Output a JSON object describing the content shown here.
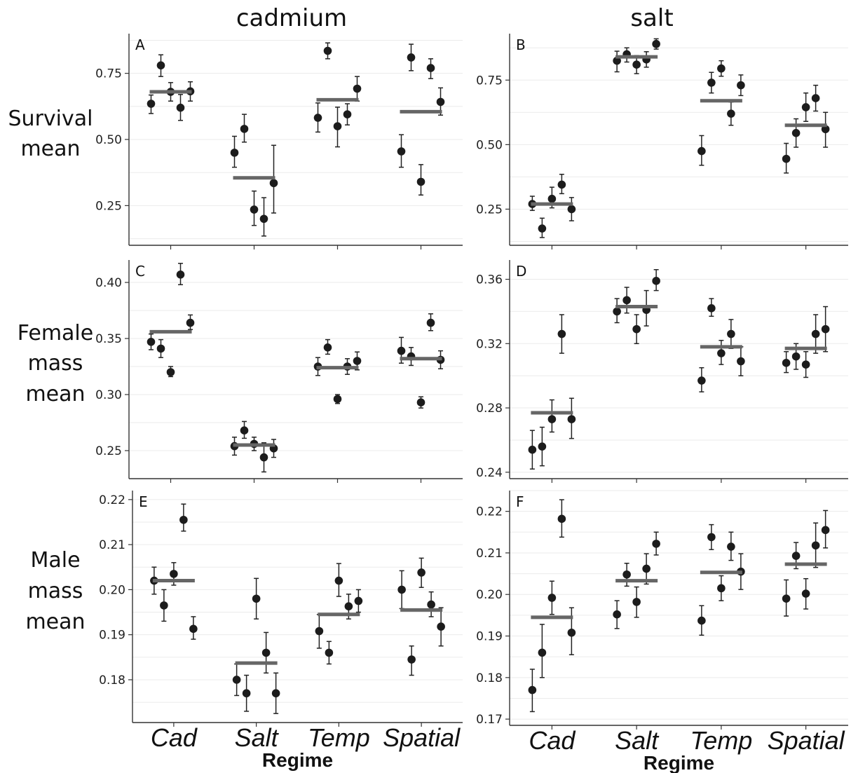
{
  "column_titles": [
    "cadmium",
    "salt"
  ],
  "row_labels": [
    [
      "Survival",
      "mean"
    ],
    [
      "Female",
      "mass",
      "mean"
    ],
    [
      "Male",
      "mass",
      "mean"
    ]
  ],
  "chart_data": [
    {
      "type": "scatter",
      "panel": "A",
      "column": "cadmium",
      "row": "Survival mean",
      "categories": [
        "Cad",
        "Salt",
        "Temp",
        "Spatial"
      ],
      "xlabel": "Regime",
      "ylim": [
        0.1,
        0.9
      ],
      "yticks": [
        0.25,
        0.5,
        0.75
      ],
      "yticklabels": [
        "0.25",
        "0.50",
        "0.75"
      ],
      "means": [
        0.68,
        0.355,
        0.65,
        0.605
      ],
      "points": [
        [
          {
            "y": 0.635,
            "lo": 0.598,
            "hi": 0.668
          },
          {
            "y": 0.78,
            "lo": 0.738,
            "hi": 0.82
          },
          {
            "y": 0.68,
            "lo": 0.645,
            "hi": 0.715
          },
          {
            "y": 0.62,
            "lo": 0.572,
            "hi": 0.67
          },
          {
            "y": 0.682,
            "lo": 0.645,
            "hi": 0.718
          }
        ],
        [
          {
            "y": 0.45,
            "lo": 0.395,
            "hi": 0.512
          },
          {
            "y": 0.54,
            "lo": 0.49,
            "hi": 0.595
          },
          {
            "y": 0.235,
            "lo": 0.175,
            "hi": 0.305
          },
          {
            "y": 0.2,
            "lo": 0.135,
            "hi": 0.28
          },
          {
            "y": 0.335,
            "lo": 0.222,
            "hi": 0.478
          }
        ],
        [
          {
            "y": 0.582,
            "lo": 0.528,
            "hi": 0.638
          },
          {
            "y": 0.835,
            "lo": 0.805,
            "hi": 0.865
          },
          {
            "y": 0.55,
            "lo": 0.472,
            "hi": 0.622
          },
          {
            "y": 0.595,
            "lo": 0.555,
            "hi": 0.635
          },
          {
            "y": 0.692,
            "lo": 0.645,
            "hi": 0.738
          }
        ],
        [
          {
            "y": 0.455,
            "lo": 0.395,
            "hi": 0.518
          },
          {
            "y": 0.81,
            "lo": 0.76,
            "hi": 0.86
          },
          {
            "y": 0.34,
            "lo": 0.29,
            "hi": 0.405
          },
          {
            "y": 0.77,
            "lo": 0.73,
            "hi": 0.805
          },
          {
            "y": 0.642,
            "lo": 0.592,
            "hi": 0.695
          }
        ]
      ]
    },
    {
      "type": "scatter",
      "panel": "B",
      "column": "salt",
      "row": "Survival mean",
      "categories": [
        "Cad",
        "Salt",
        "Temp",
        "Spatial"
      ],
      "xlabel": "Regime",
      "ylim": [
        0.11,
        0.93
      ],
      "yticks": [
        0.25,
        0.5,
        0.75
      ],
      "yticklabels": [
        "0.25",
        "0.50",
        "0.75"
      ],
      "means": [
        0.27,
        0.84,
        0.67,
        0.575
      ],
      "points": [
        [
          {
            "y": 0.27,
            "lo": 0.245,
            "hi": 0.3
          },
          {
            "y": 0.175,
            "lo": 0.14,
            "hi": 0.215
          },
          {
            "y": 0.29,
            "lo": 0.255,
            "hi": 0.335
          },
          {
            "y": 0.345,
            "lo": 0.31,
            "hi": 0.385
          },
          {
            "y": 0.25,
            "lo": 0.205,
            "hi": 0.295
          }
        ],
        [
          {
            "y": 0.825,
            "lo": 0.782,
            "hi": 0.862
          },
          {
            "y": 0.85,
            "lo": 0.82,
            "hi": 0.875
          },
          {
            "y": 0.81,
            "lo": 0.775,
            "hi": 0.845
          },
          {
            "y": 0.83,
            "lo": 0.8,
            "hi": 0.86
          },
          {
            "y": 0.89,
            "lo": 0.87,
            "hi": 0.91
          }
        ],
        [
          {
            "y": 0.475,
            "lo": 0.42,
            "hi": 0.535
          },
          {
            "y": 0.74,
            "lo": 0.7,
            "hi": 0.78
          },
          {
            "y": 0.795,
            "lo": 0.765,
            "hi": 0.825
          },
          {
            "y": 0.62,
            "lo": 0.575,
            "hi": 0.665
          },
          {
            "y": 0.73,
            "lo": 0.69,
            "hi": 0.77
          }
        ],
        [
          {
            "y": 0.445,
            "lo": 0.39,
            "hi": 0.505
          },
          {
            "y": 0.545,
            "lo": 0.49,
            "hi": 0.6
          },
          {
            "y": 0.645,
            "lo": 0.59,
            "hi": 0.7
          },
          {
            "y": 0.68,
            "lo": 0.63,
            "hi": 0.73
          },
          {
            "y": 0.56,
            "lo": 0.49,
            "hi": 0.625
          }
        ]
      ]
    },
    {
      "type": "scatter",
      "panel": "C",
      "column": "cadmium",
      "row": "Female mass mean",
      "categories": [
        "Cad",
        "Salt",
        "Temp",
        "Spatial"
      ],
      "xlabel": "Regime",
      "ylim": [
        0.225,
        0.42
      ],
      "yticks": [
        0.25,
        0.3,
        0.35,
        0.4
      ],
      "yticklabels": [
        "0.25",
        "0.30",
        "0.35",
        "0.40"
      ],
      "means": [
        0.356,
        0.255,
        0.324,
        0.332
      ],
      "points": [
        [
          {
            "y": 0.347,
            "lo": 0.34,
            "hi": 0.354
          },
          {
            "y": 0.341,
            "lo": 0.333,
            "hi": 0.349
          },
          {
            "y": 0.32,
            "lo": 0.316,
            "hi": 0.325
          },
          {
            "y": 0.407,
            "lo": 0.398,
            "hi": 0.417
          },
          {
            "y": 0.364,
            "lo": 0.358,
            "hi": 0.371
          }
        ],
        [
          {
            "y": 0.254,
            "lo": 0.246,
            "hi": 0.262
          },
          {
            "y": 0.268,
            "lo": 0.261,
            "hi": 0.276
          },
          {
            "y": 0.256,
            "lo": 0.25,
            "hi": 0.262
          },
          {
            "y": 0.244,
            "lo": 0.231,
            "hi": 0.257
          },
          {
            "y": 0.252,
            "lo": 0.244,
            "hi": 0.26
          }
        ],
        [
          {
            "y": 0.325,
            "lo": 0.317,
            "hi": 0.333
          },
          {
            "y": 0.342,
            "lo": 0.336,
            "hi": 0.349
          },
          {
            "y": 0.296,
            "lo": 0.292,
            "hi": 0.3
          },
          {
            "y": 0.325,
            "lo": 0.318,
            "hi": 0.332
          },
          {
            "y": 0.33,
            "lo": 0.322,
            "hi": 0.338
          }
        ],
        [
          {
            "y": 0.339,
            "lo": 0.328,
            "hi": 0.351
          },
          {
            "y": 0.334,
            "lo": 0.326,
            "hi": 0.342
          },
          {
            "y": 0.293,
            "lo": 0.288,
            "hi": 0.298
          },
          {
            "y": 0.364,
            "lo": 0.357,
            "hi": 0.372
          },
          {
            "y": 0.331,
            "lo": 0.323,
            "hi": 0.339
          }
        ]
      ]
    },
    {
      "type": "scatter",
      "panel": "D",
      "column": "salt",
      "row": "Female mass mean",
      "categories": [
        "Cad",
        "Salt",
        "Temp",
        "Spatial"
      ],
      "xlabel": "Regime",
      "ylim": [
        0.236,
        0.372
      ],
      "yticks": [
        0.24,
        0.28,
        0.32,
        0.36
      ],
      "yticklabels": [
        "0.24",
        "0.28",
        "0.32",
        "0.36"
      ],
      "means": [
        0.277,
        0.343,
        0.318,
        0.317
      ],
      "points": [
        [
          {
            "y": 0.254,
            "lo": 0.242,
            "hi": 0.266
          },
          {
            "y": 0.256,
            "lo": 0.244,
            "hi": 0.268
          },
          {
            "y": 0.273,
            "lo": 0.265,
            "hi": 0.285
          },
          {
            "y": 0.326,
            "lo": 0.314,
            "hi": 0.338
          },
          {
            "y": 0.273,
            "lo": 0.261,
            "hi": 0.286
          }
        ],
        [
          {
            "y": 0.34,
            "lo": 0.333,
            "hi": 0.348
          },
          {
            "y": 0.347,
            "lo": 0.339,
            "hi": 0.355
          },
          {
            "y": 0.329,
            "lo": 0.32,
            "hi": 0.338
          },
          {
            "y": 0.341,
            "lo": 0.331,
            "hi": 0.353
          },
          {
            "y": 0.359,
            "lo": 0.353,
            "hi": 0.366
          }
        ],
        [
          {
            "y": 0.297,
            "lo": 0.29,
            "hi": 0.305
          },
          {
            "y": 0.342,
            "lo": 0.337,
            "hi": 0.348
          },
          {
            "y": 0.314,
            "lo": 0.307,
            "hi": 0.322
          },
          {
            "y": 0.326,
            "lo": 0.317,
            "hi": 0.335
          },
          {
            "y": 0.309,
            "lo": 0.3,
            "hi": 0.318
          }
        ],
        [
          {
            "y": 0.308,
            "lo": 0.302,
            "hi": 0.315
          },
          {
            "y": 0.312,
            "lo": 0.304,
            "hi": 0.32
          },
          {
            "y": 0.307,
            "lo": 0.299,
            "hi": 0.315
          },
          {
            "y": 0.326,
            "lo": 0.314,
            "hi": 0.338
          },
          {
            "y": 0.329,
            "lo": 0.315,
            "hi": 0.343
          }
        ]
      ]
    },
    {
      "type": "scatter",
      "panel": "E",
      "column": "cadmium",
      "row": "Male mass mean",
      "categories": [
        "Cad",
        "Salt",
        "Temp",
        "Spatial"
      ],
      "xlabel": "Regime",
      "ylim": [
        0.1705,
        0.222
      ],
      "yticks": [
        0.18,
        0.19,
        0.2,
        0.21,
        0.22
      ],
      "yticklabels": [
        "0.18",
        "0.19",
        "0.20",
        "0.21",
        "0.22"
      ],
      "means": [
        0.202,
        0.1837,
        0.1945,
        0.1955
      ],
      "points": [
        [
          {
            "y": 0.202,
            "lo": 0.199,
            "hi": 0.205
          },
          {
            "y": 0.1965,
            "lo": 0.193,
            "hi": 0.2
          },
          {
            "y": 0.2035,
            "lo": 0.201,
            "hi": 0.206
          },
          {
            "y": 0.2155,
            "lo": 0.213,
            "hi": 0.219
          },
          {
            "y": 0.1913,
            "lo": 0.189,
            "hi": 0.194
          }
        ],
        [
          {
            "y": 0.18,
            "lo": 0.1765,
            "hi": 0.1835
          },
          {
            "y": 0.177,
            "lo": 0.173,
            "hi": 0.181
          },
          {
            "y": 0.198,
            "lo": 0.1935,
            "hi": 0.2025
          },
          {
            "y": 0.186,
            "lo": 0.1815,
            "hi": 0.1905
          },
          {
            "y": 0.177,
            "lo": 0.1725,
            "hi": 0.1815
          }
        ],
        [
          {
            "y": 0.1908,
            "lo": 0.187,
            "hi": 0.1945
          },
          {
            "y": 0.186,
            "lo": 0.1835,
            "hi": 0.1885
          },
          {
            "y": 0.202,
            "lo": 0.1985,
            "hi": 0.2058
          },
          {
            "y": 0.1963,
            "lo": 0.1935,
            "hi": 0.199
          },
          {
            "y": 0.1975,
            "lo": 0.195,
            "hi": 0.2
          }
        ],
        [
          {
            "y": 0.2,
            "lo": 0.1958,
            "hi": 0.2042
          },
          {
            "y": 0.1845,
            "lo": 0.181,
            "hi": 0.1875
          },
          {
            "y": 0.2038,
            "lo": 0.2005,
            "hi": 0.207
          },
          {
            "y": 0.1967,
            "lo": 0.194,
            "hi": 0.1995
          },
          {
            "y": 0.1918,
            "lo": 0.1875,
            "hi": 0.196
          }
        ]
      ]
    },
    {
      "type": "scatter",
      "panel": "F",
      "column": "salt",
      "row": "Male mass mean",
      "categories": [
        "Cad",
        "Salt",
        "Temp",
        "Spatial"
      ],
      "xlabel": "Regime",
      "ylim": [
        0.1685,
        0.225
      ],
      "yticks": [
        0.17,
        0.18,
        0.19,
        0.2,
        0.21,
        0.22
      ],
      "yticklabels": [
        "0.17",
        "0.18",
        "0.19",
        "0.20",
        "0.21",
        "0.22"
      ],
      "means": [
        0.1945,
        0.2033,
        0.2053,
        0.2073
      ],
      "points": [
        [
          {
            "y": 0.177,
            "lo": 0.1718,
            "hi": 0.182
          },
          {
            "y": 0.186,
            "lo": 0.18,
            "hi": 0.1928
          },
          {
            "y": 0.1992,
            "lo": 0.1952,
            "hi": 0.2032
          },
          {
            "y": 0.2182,
            "lo": 0.2138,
            "hi": 0.2228
          },
          {
            "y": 0.1908,
            "lo": 0.1855,
            "hi": 0.1968
          }
        ],
        [
          {
            "y": 0.1952,
            "lo": 0.1918,
            "hi": 0.1985
          },
          {
            "y": 0.2048,
            "lo": 0.202,
            "hi": 0.2075
          },
          {
            "y": 0.1982,
            "lo": 0.1945,
            "hi": 0.2018
          },
          {
            "y": 0.2062,
            "lo": 0.2025,
            "hi": 0.2098
          },
          {
            "y": 0.2122,
            "lo": 0.2095,
            "hi": 0.215
          }
        ],
        [
          {
            "y": 0.1937,
            "lo": 0.1902,
            "hi": 0.1973
          },
          {
            "y": 0.2138,
            "lo": 0.2108,
            "hi": 0.2168
          },
          {
            "y": 0.2015,
            "lo": 0.1985,
            "hi": 0.2045
          },
          {
            "y": 0.2115,
            "lo": 0.2082,
            "hi": 0.215
          },
          {
            "y": 0.2055,
            "lo": 0.2012,
            "hi": 0.2098
          }
        ],
        [
          {
            "y": 0.199,
            "lo": 0.1948,
            "hi": 0.2035
          },
          {
            "y": 0.2093,
            "lo": 0.2062,
            "hi": 0.2125
          },
          {
            "y": 0.2002,
            "lo": 0.1965,
            "hi": 0.2038
          },
          {
            "y": 0.2118,
            "lo": 0.2065,
            "hi": 0.2172
          },
          {
            "y": 0.2155,
            "lo": 0.2112,
            "hi": 0.2202
          }
        ]
      ]
    }
  ]
}
